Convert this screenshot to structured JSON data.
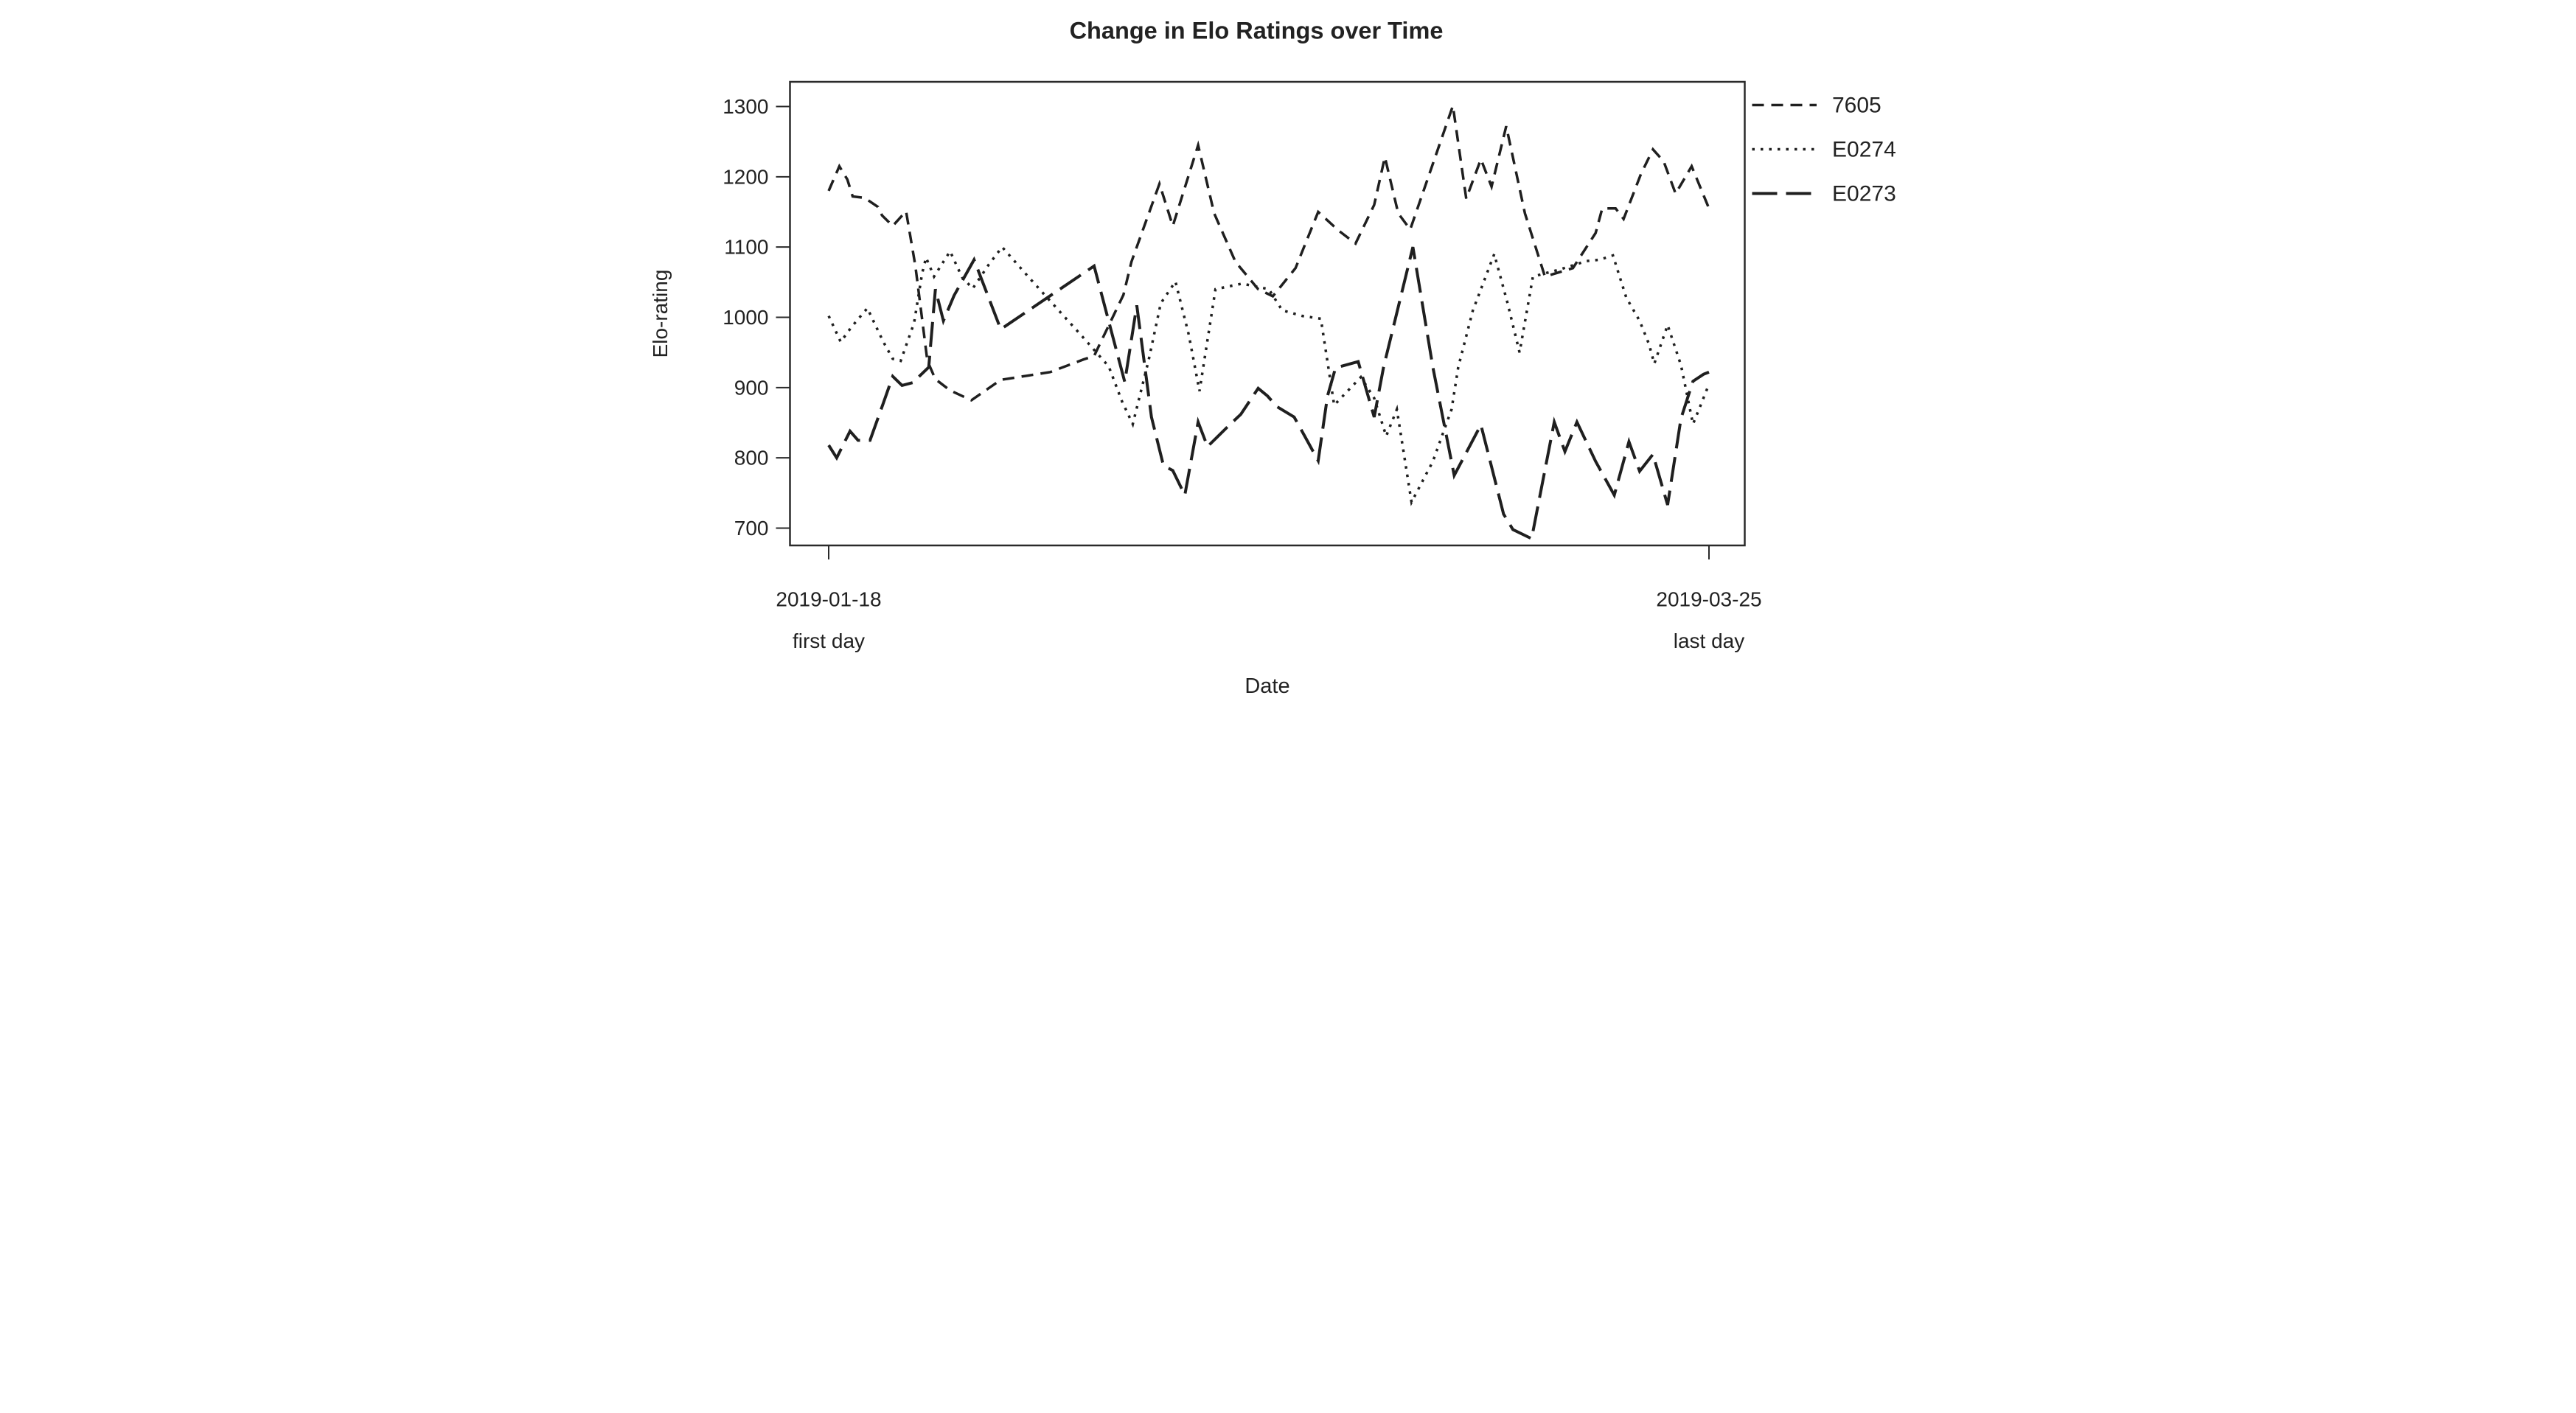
{
  "page": {
    "background": "#ffffff",
    "text_color": "#222222",
    "line_color": "#1f1f1f"
  },
  "chart_data": {
    "type": "line",
    "title": "Change in Elo Ratings over Time",
    "xlabel": "Date",
    "ylabel": "Elo-rating",
    "grid": false,
    "legend_position": "top-right-outside",
    "x_axis": {
      "unit": "day index (0 = first day, 66 = last day)",
      "range_days": [
        0,
        66
      ],
      "ticks": [
        {
          "day": 0,
          "label": "2019-01-18",
          "sublabel": "first day"
        },
        {
          "day": 66,
          "label": "2019-03-25",
          "sublabel": "last day"
        }
      ]
    },
    "y_axis": {
      "ticks": [
        700,
        800,
        900,
        1000,
        1100,
        1200,
        1300
      ],
      "range": [
        655,
        1330
      ]
    },
    "series": [
      {
        "name": "7605",
        "style": "dashed",
        "color": "#1f1f1f",
        "points": [
          [
            0,
            1180
          ],
          [
            0.8,
            1215
          ],
          [
            1.4,
            1196
          ],
          [
            1.8,
            1172
          ],
          [
            2.7,
            1170
          ],
          [
            3.7,
            1157
          ],
          [
            4,
            1145
          ],
          [
            4.8,
            1130
          ],
          [
            5.8,
            1151
          ],
          [
            6.5,
            1073
          ],
          [
            6.9,
            1013
          ],
          [
            7.4,
            938
          ],
          [
            8,
            912
          ],
          [
            9.1,
            896
          ],
          [
            10.7,
            882
          ],
          [
            12.9,
            911
          ],
          [
            16.6,
            922
          ],
          [
            19.1,
            940
          ],
          [
            19.9,
            945
          ],
          [
            22.1,
            1032
          ],
          [
            22.7,
            1079
          ],
          [
            24.8,
            1190
          ],
          [
            25.8,
            1130
          ],
          [
            27.7,
            1245
          ],
          [
            28.9,
            1148
          ],
          [
            30.5,
            1079
          ],
          [
            32.2,
            1040
          ],
          [
            33.3,
            1030
          ],
          [
            35,
            1070
          ],
          [
            36.7,
            1150
          ],
          [
            38.2,
            1124
          ],
          [
            39.5,
            1105
          ],
          [
            40.9,
            1160
          ],
          [
            41.7,
            1228
          ],
          [
            42.7,
            1148
          ],
          [
            43.6,
            1125
          ],
          [
            46.8,
            1301
          ],
          [
            47.8,
            1169
          ],
          [
            48.9,
            1225
          ],
          [
            49.7,
            1186
          ],
          [
            50.8,
            1272
          ],
          [
            52.2,
            1148
          ],
          [
            53.7,
            1058
          ],
          [
            55.8,
            1070
          ],
          [
            57.5,
            1120
          ],
          [
            58,
            1155
          ],
          [
            59,
            1155
          ],
          [
            59.6,
            1140
          ],
          [
            60.9,
            1204
          ],
          [
            61.8,
            1239
          ],
          [
            62.6,
            1222
          ],
          [
            63.5,
            1176
          ],
          [
            64.7,
            1215
          ],
          [
            66,
            1155
          ]
        ]
      },
      {
        "name": "E0274",
        "style": "dotted",
        "color": "#1f1f1f",
        "points": [
          [
            0,
            1002
          ],
          [
            0.9,
            965
          ],
          [
            1.7,
            986
          ],
          [
            2.9,
            1013
          ],
          [
            3.5,
            989
          ],
          [
            4.1,
            965
          ],
          [
            4.8,
            941
          ],
          [
            5.4,
            938
          ],
          [
            6.4,
            992
          ],
          [
            7,
            1062
          ],
          [
            7.3,
            1085
          ],
          [
            7.9,
            1058
          ],
          [
            9.1,
            1094
          ],
          [
            10,
            1057
          ],
          [
            10.8,
            1041
          ],
          [
            12,
            1075
          ],
          [
            13,
            1100
          ],
          [
            15,
            1057
          ],
          [
            17,
            1015
          ],
          [
            19,
            973
          ],
          [
            21,
            930
          ],
          [
            22,
            880
          ],
          [
            22.8,
            848
          ],
          [
            24,
            940
          ],
          [
            24.9,
            1020
          ],
          [
            26,
            1051
          ],
          [
            27,
            975
          ],
          [
            27.8,
            895
          ],
          [
            29,
            1040
          ],
          [
            31,
            1048
          ],
          [
            33,
            1040
          ],
          [
            34,
            1010
          ],
          [
            35.5,
            1002
          ],
          [
            36.9,
            998
          ],
          [
            37.9,
            875
          ],
          [
            38.9,
            895
          ],
          [
            39.9,
            915
          ],
          [
            40.9,
            885
          ],
          [
            41.8,
            831
          ],
          [
            42.6,
            869
          ],
          [
            43.7,
            737
          ],
          [
            45.3,
            795
          ],
          [
            46.7,
            869
          ],
          [
            47.2,
            929
          ],
          [
            48.3,
            1010
          ],
          [
            49.9,
            1090
          ],
          [
            50.9,
            1020
          ],
          [
            51.8,
            950
          ],
          [
            52.8,
            1058
          ],
          [
            54.8,
            1068
          ],
          [
            56.8,
            1080
          ],
          [
            57.8,
            1082
          ],
          [
            58.8,
            1088
          ],
          [
            59.8,
            1028
          ],
          [
            60.8,
            995
          ],
          [
            61.5,
            962
          ],
          [
            61.9,
            934
          ],
          [
            62.9,
            989
          ],
          [
            63.9,
            932
          ],
          [
            64.3,
            895
          ],
          [
            64.8,
            848
          ],
          [
            65.4,
            876
          ],
          [
            66,
            905
          ]
        ]
      },
      {
        "name": "E0273",
        "style": "longdash",
        "color": "#1f1f1f",
        "points": [
          [
            0,
            818
          ],
          [
            0.6,
            800
          ],
          [
            1.6,
            838
          ],
          [
            2.2,
            825
          ],
          [
            3.1,
            825
          ],
          [
            4.1,
            878
          ],
          [
            4.8,
            916
          ],
          [
            5.5,
            903
          ],
          [
            6.3,
            907
          ],
          [
            7.5,
            929
          ],
          [
            8,
            1040
          ],
          [
            8.6,
            995
          ],
          [
            9.4,
            1031
          ],
          [
            10.9,
            1082
          ],
          [
            12.9,
            983
          ],
          [
            19.9,
            1073
          ],
          [
            22.2,
            908
          ],
          [
            23.1,
            1017
          ],
          [
            24.2,
            858
          ],
          [
            25.1,
            789
          ],
          [
            25.8,
            782
          ],
          [
            26.7,
            747
          ],
          [
            27.7,
            851
          ],
          [
            28.4,
            816
          ],
          [
            29.9,
            844
          ],
          [
            30.9,
            862
          ],
          [
            32.2,
            899
          ],
          [
            32.9,
            888
          ],
          [
            33.6,
            873
          ],
          [
            34.9,
            858
          ],
          [
            35.6,
            834
          ],
          [
            36.7,
            796
          ],
          [
            37.4,
            888
          ],
          [
            38,
            928
          ],
          [
            39.7,
            937
          ],
          [
            40.9,
            858
          ],
          [
            41.6,
            929
          ],
          [
            43.8,
            1100
          ],
          [
            45.3,
            929
          ],
          [
            46.9,
            775
          ],
          [
            48.9,
            847
          ],
          [
            50.6,
            720
          ],
          [
            51.3,
            698
          ],
          [
            52.7,
            685
          ],
          [
            54.4,
            851
          ],
          [
            55.2,
            809
          ],
          [
            56.1,
            851
          ],
          [
            57.5,
            795
          ],
          [
            58.9,
            747
          ],
          [
            60,
            823
          ],
          [
            60.8,
            781
          ],
          [
            61.8,
            805
          ],
          [
            62.9,
            733
          ],
          [
            63.9,
            856
          ],
          [
            64.8,
            909
          ],
          [
            65.6,
            919
          ],
          [
            66,
            922
          ]
        ]
      }
    ]
  }
}
